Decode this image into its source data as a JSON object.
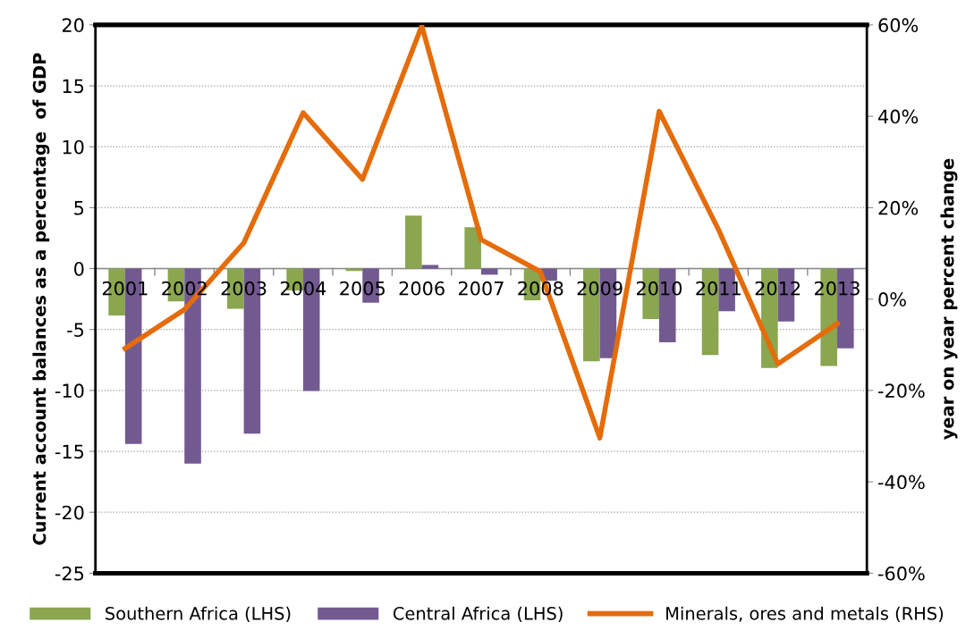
{
  "chart_data": {
    "type": "bar",
    "categories": [
      "2001",
      "2002",
      "2003",
      "2004",
      "2005",
      "2006",
      "2007",
      "2008",
      "2009",
      "2010",
      "2011",
      "2012",
      "2013"
    ],
    "series": [
      {
        "name": "Southern Africa (LHS)",
        "color": "#8aa64f",
        "values": [
          -3.85,
          -2.7,
          -3.3,
          -1.8,
          -0.2,
          4.35,
          3.4,
          -2.6,
          -7.6,
          -4.15,
          -7.1,
          -8.15,
          -8.0
        ]
      },
      {
        "name": "Central Africa (LHS)",
        "color": "#725a91",
        "values": [
          -14.4,
          -16.0,
          -13.55,
          -10.05,
          -2.8,
          0.3,
          -0.5,
          -1.0,
          -7.35,
          -6.05,
          -3.5,
          -4.35,
          -6.55
        ]
      },
      {
        "name": "Minerals, ores and metals (RHS)",
        "type": "line",
        "axis": "y2",
        "color": "#e46c0a",
        "values": [
          -10.8,
          -2.3,
          12.3,
          40.8,
          26.2,
          59.8,
          13.0,
          6.0,
          -30.4,
          41.1,
          15.2,
          -14.2,
          -5.4
        ]
      }
    ],
    "ylabel": "Current account balances as a percentage  of GDP",
    "y2label": "year on year percent change",
    "ylim": [
      -25,
      20
    ],
    "yticks": [
      -25,
      -20,
      -15,
      -10,
      -5,
      0,
      5,
      10,
      15,
      20
    ],
    "y2lim": [
      -60,
      60
    ],
    "y2ticks": [
      {
        "value": -60,
        "label": "-60%"
      },
      {
        "value": -40,
        "label": "-40%"
      },
      {
        "value": -20,
        "label": "-20%"
      },
      {
        "value": 0,
        "label": "0%"
      },
      {
        "value": 20,
        "label": "20%"
      },
      {
        "value": 40,
        "label": "40%"
      },
      {
        "value": 60,
        "label": "60%"
      }
    ],
    "grid": "y",
    "legend": "bottom",
    "marker": "none",
    "line_style": "solid"
  }
}
